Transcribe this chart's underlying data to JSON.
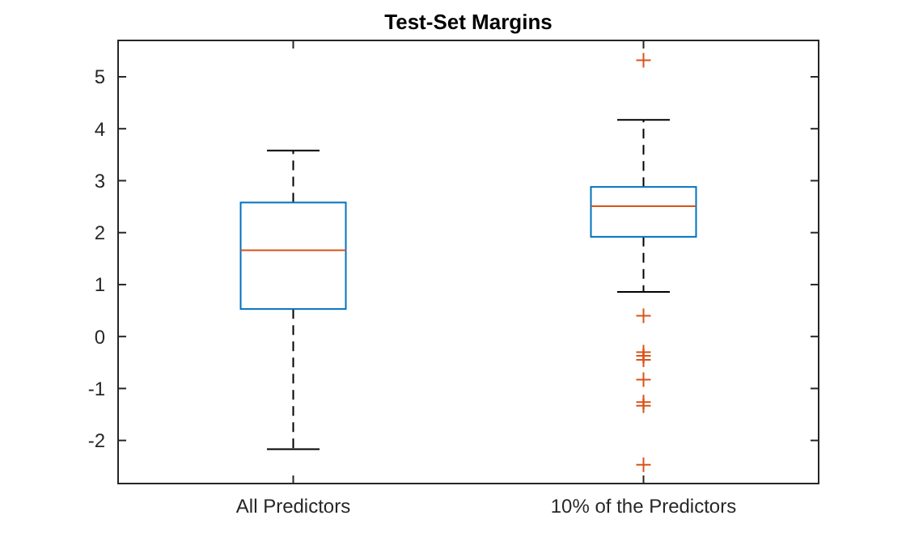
{
  "chart_data": {
    "type": "box",
    "title": "Test-Set Margins",
    "categories": [
      "All Predictors",
      "10% of the Predictors"
    ],
    "boxes": [
      {
        "low": -2.17,
        "q1": 0.53,
        "median": 1.66,
        "q3": 2.58,
        "high": 3.58
      },
      {
        "low": 0.86,
        "q1": 1.92,
        "median": 2.51,
        "q3": 2.88,
        "high": 4.17,
        "outliers": [
          5.32,
          0.4,
          -0.3,
          -0.37,
          -0.45,
          -0.83,
          -1.26,
          -1.33,
          -2.47
        ]
      }
    ],
    "color": "#0072bd",
    "ylim": [
      -2.83,
      5.7
    ],
    "yticks": [
      -2,
      -1,
      0,
      1,
      2,
      3,
      4,
      5
    ],
    "grid": false,
    "marker": "cross"
  }
}
